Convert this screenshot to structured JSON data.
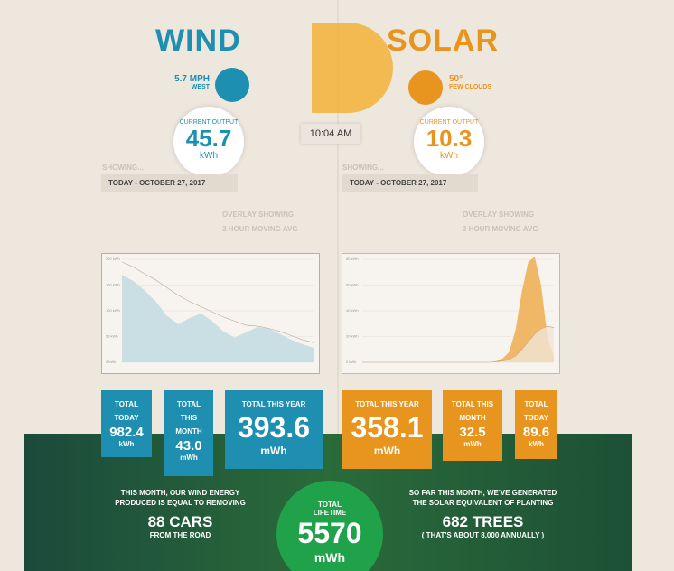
{
  "time": "10:04 AM",
  "wind": {
    "title": "WIND",
    "speed": "5.7 MPH",
    "direction": "WEST",
    "output_label": "CURRENT OUTPUT",
    "output": "45.7",
    "output_unit": "kWh",
    "showing": "SHOWING...",
    "date": "TODAY - OCTOBER 27, 2017",
    "overlay": [
      "OVERLAY SHOWING",
      "3 HOUR MOVING AVG"
    ],
    "chart": {
      "type": "area",
      "ylim": [
        0,
        200
      ],
      "yticks": [
        {
          "value": 0,
          "label": "0 kWh"
        },
        {
          "value": 50,
          "label": "50 kWh"
        },
        {
          "value": 100,
          "label": "100 kWh"
        },
        {
          "value": 150,
          "label": "150 kWh"
        },
        {
          "value": 200,
          "label": "200 kWh"
        }
      ],
      "values": [
        170,
        158,
        140,
        118,
        90,
        74,
        86,
        95,
        80,
        60,
        48,
        58,
        68,
        66,
        55,
        44,
        35,
        28
      ],
      "moving_avg": [
        195,
        185,
        172,
        160,
        145,
        130,
        118,
        108,
        98,
        88,
        80,
        72,
        70,
        66,
        60,
        52,
        44,
        38
      ]
    },
    "totals": [
      {
        "label": "TOTAL TODAY",
        "value": "982.4",
        "unit": "kWh"
      },
      {
        "label": "TOTAL THIS MONTH",
        "value": "43.0",
        "unit": "mWh"
      },
      {
        "label": "TOTAL THIS YEAR",
        "value": "393.6",
        "unit": "mWh"
      }
    ],
    "equivalent": {
      "text": "THIS MONTH, OUR WIND ENERGY PRODUCED IS EQUAL TO REMOVING",
      "value": "88 CARS",
      "note": "FROM THE ROAD"
    }
  },
  "solar": {
    "title": "SOLAR",
    "temperature": "50°",
    "conditions": "FEW CLOUDS",
    "output_label": "CURRENT OUTPUT",
    "output": "10.3",
    "output_unit": "kWh",
    "showing": "SHOWING...",
    "date": "TODAY - OCTOBER 27, 2017",
    "overlay": [
      "OVERLAY SHOWING",
      "3 HOUR MOVING AVG"
    ],
    "chart": {
      "type": "area",
      "ylim": [
        0,
        80
      ],
      "yticks": [
        {
          "value": 0,
          "label": "0 kWh"
        },
        {
          "value": 20,
          "label": "20 kWh"
        },
        {
          "value": 40,
          "label": "40 kWh"
        },
        {
          "value": 60,
          "label": "60 kWh"
        },
        {
          "value": 80,
          "label": "80 kWh"
        }
      ],
      "values": [
        0,
        0,
        0,
        0,
        0,
        0,
        0,
        0,
        0,
        0,
        0,
        0,
        0,
        0,
        0,
        0,
        0,
        0,
        0,
        0,
        0,
        1,
        3,
        8,
        25,
        55,
        78,
        82,
        60,
        20,
        4
      ],
      "moving_avg": [
        0,
        0,
        0,
        0,
        0,
        0,
        0,
        0,
        0,
        0,
        0,
        0,
        0,
        0,
        0,
        0,
        0,
        0,
        0,
        0,
        0,
        0.5,
        1,
        2,
        5,
        10,
        16,
        22,
        26,
        28,
        27
      ]
    },
    "totals": [
      {
        "label": "TOTAL THIS YEAR",
        "value": "358.1",
        "unit": "mWh"
      },
      {
        "label": "TOTAL THIS MONTH",
        "value": "32.5",
        "unit": "mWh"
      },
      {
        "label": "TOTAL TODAY",
        "value": "89.6",
        "unit": "kWh"
      }
    ],
    "equivalent": {
      "text": "SO FAR THIS MONTH, WE'VE GENERATED THE SOLAR EQUIVALENT OF PLANTING",
      "value": "682 TREES",
      "note": "( THAT'S ABOUT 8,000 ANNUALLY )"
    }
  },
  "lifetime": {
    "label": "TOTAL LIFETIME",
    "value": "5570",
    "unit": "mWh"
  }
}
